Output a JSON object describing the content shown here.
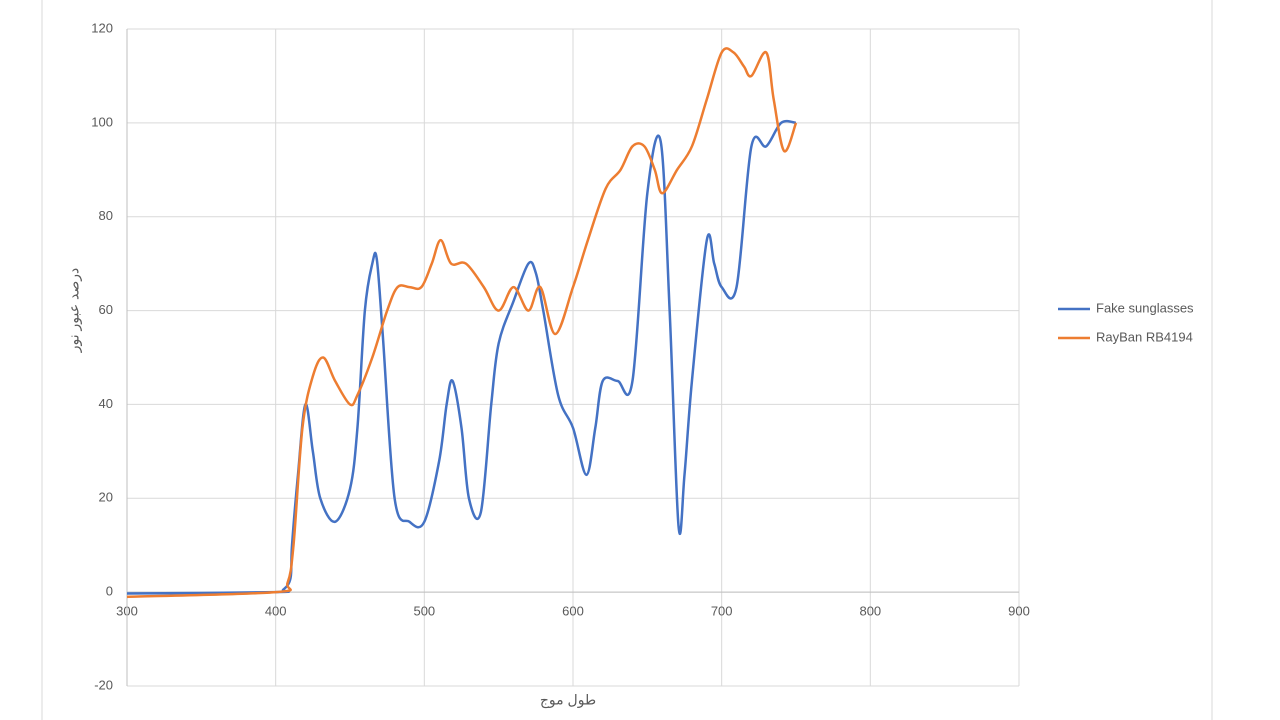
{
  "chart_data": {
    "type": "line",
    "x_label": "طول موج",
    "y_label": "درصد عبور نور",
    "xlim": [
      300,
      900
    ],
    "xticks": [
      300,
      400,
      500,
      600,
      700,
      800,
      900
    ],
    "ylim": [
      -20,
      120
    ],
    "yticks": [
      -20,
      0,
      20,
      40,
      60,
      80,
      100,
      120
    ],
    "grid": true,
    "legend": "right",
    "series": [
      {
        "name": "Fake sunglasses",
        "color": "#4472c4",
        "x": [
          300,
          400,
          405,
          410,
          411,
          415,
          420,
          425,
          430,
          440,
          450,
          455,
          460,
          465,
          468,
          472,
          480,
          490,
          500,
          510,
          515,
          519,
          525,
          530,
          538,
          545,
          550,
          560,
          570,
          575,
          580,
          590,
          600,
          609,
          615,
          620,
          630,
          640,
          650,
          659,
          665,
          671,
          675,
          680,
          690,
          695,
          700,
          710,
          720,
          730,
          740,
          750
        ],
        "values": [
          -0.3,
          0,
          0.5,
          3,
          10,
          25,
          40,
          30,
          20,
          15,
          22,
          35,
          60,
          70,
          71,
          55,
          20,
          15,
          15,
          28,
          40,
          45,
          35,
          20,
          17,
          40,
          53,
          62,
          70,
          68,
          60,
          42,
          35,
          25,
          35,
          45,
          45,
          45,
          85,
          96,
          60,
          14,
          25,
          45,
          75,
          70,
          65,
          65,
          95,
          95,
          100,
          100
        ]
      },
      {
        "name": "RayBan RB4194",
        "color": "#ed7d31",
        "x": [
          300,
          400,
          408,
          412,
          418,
          425,
          432,
          440,
          450,
          455,
          465,
          475,
          482,
          490,
          498,
          505,
          511,
          518,
          528,
          540,
          550,
          560,
          570,
          578,
          588,
          600,
          610,
          622,
          632,
          640,
          648,
          655,
          660,
          670,
          680,
          690,
          700,
          708,
          715,
          720,
          730,
          735,
          742,
          750
        ],
        "values": [
          -1,
          0,
          2,
          10,
          35,
          46,
          50,
          45,
          40,
          42,
          50,
          60,
          65,
          65,
          65,
          70,
          75,
          70,
          70,
          65,
          60,
          65,
          60,
          65,
          55,
          65,
          75,
          86,
          90,
          95,
          95,
          90,
          85,
          90,
          95,
          105,
          115,
          115,
          112,
          110,
          115,
          105,
          94,
          100
        ]
      }
    ]
  }
}
